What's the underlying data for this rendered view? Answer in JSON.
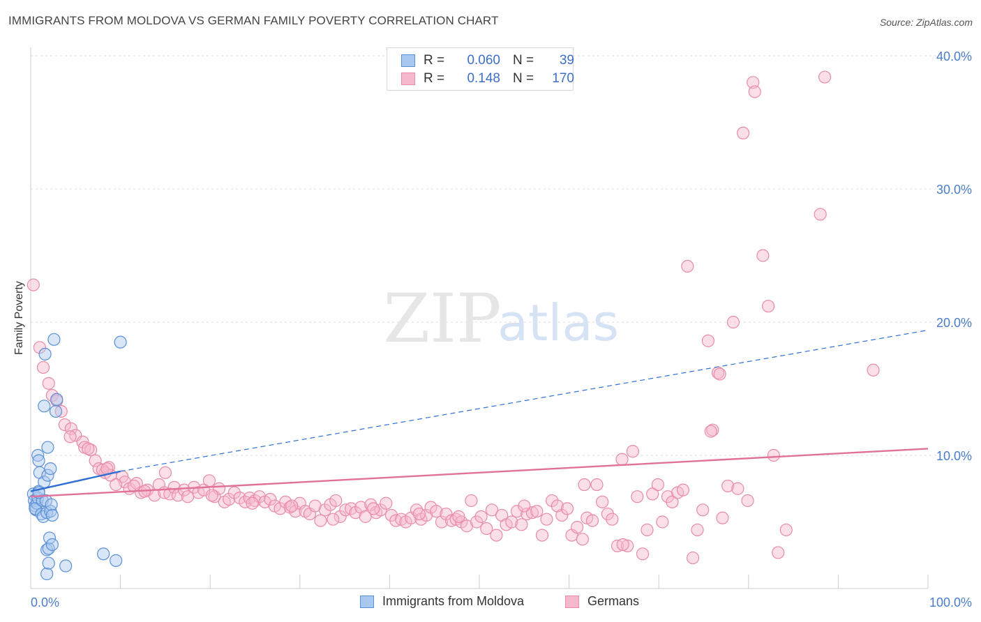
{
  "title": "IMMIGRANTS FROM MOLDOVA VS GERMAN FAMILY POVERTY CORRELATION CHART",
  "source": "Source: ZipAtlas.com",
  "watermark": {
    "zip": "ZIP",
    "atlas": "atlas"
  },
  "colors": {
    "blue_fill": "#a9c8f0",
    "blue_stroke": "#5b8fd6",
    "blue_line": "#2e6fd2",
    "pink_fill": "#f6b8cc",
    "pink_stroke": "#e88aa8",
    "pink_line": "#e2719a",
    "grid": "#dddddd",
    "tick_text": "#4a7dc9"
  },
  "legend_top": {
    "rows": [
      {
        "r_label": "R =",
        "r_value": "0.060",
        "n_label": "N =",
        "n_value": "39"
      },
      {
        "r_label": "R =",
        "r_value": "0.148",
        "n_label": "N =",
        "n_value": "170"
      }
    ]
  },
  "legend_bottom": [
    "Immigrants from Moldova",
    "Germans"
  ],
  "chart_data": {
    "type": "scatter",
    "title": "IMMIGRANTS FROM MOLDOVA VS GERMAN FAMILY POVERTY CORRELATION CHART",
    "xlabel": "",
    "ylabel": "Family Poverty",
    "xlim": [
      0,
      100
    ],
    "ylim": [
      0,
      40
    ],
    "x_tick_labels": [
      "0.0%",
      "100.0%"
    ],
    "y_ticks": [
      10,
      20,
      30,
      40
    ],
    "y_tick_labels": [
      "10.0%",
      "20.0%",
      "30.0%",
      "40.0%"
    ],
    "grid": true,
    "legend_placement": "top-center",
    "series": [
      {
        "name": "Immigrants from Moldova",
        "R": 0.06,
        "N": 39,
        "trend": {
          "solid": [
            [
              0,
              7.3
            ],
            [
              10,
              8.8
            ]
          ],
          "dashed": [
            [
              10,
              8.8
            ],
            [
              100,
              19.4
            ]
          ]
        },
        "points": [
          [
            0.3,
            7.1
          ],
          [
            0.4,
            6.6
          ],
          [
            0.5,
            6.2
          ],
          [
            0.6,
            5.9
          ],
          [
            0.7,
            6.4
          ],
          [
            0.8,
            6.8
          ],
          [
            0.9,
            7.3
          ],
          [
            0.5,
            6.0
          ],
          [
            0.8,
            10.0
          ],
          [
            0.9,
            9.6
          ],
          [
            1.0,
            8.7
          ],
          [
            1.2,
            5.6
          ],
          [
            1.3,
            6.6
          ],
          [
            1.4,
            5.4
          ],
          [
            1.5,
            13.7
          ],
          [
            1.5,
            8.0
          ],
          [
            1.6,
            17.6
          ],
          [
            1.7,
            6.6
          ],
          [
            1.8,
            5.7
          ],
          [
            1.8,
            2.9
          ],
          [
            1.8,
            1.1
          ],
          [
            1.9,
            10.6
          ],
          [
            1.9,
            8.5
          ],
          [
            2.0,
            3.0
          ],
          [
            2.0,
            1.9
          ],
          [
            2.1,
            3.8
          ],
          [
            2.2,
            5.8
          ],
          [
            2.2,
            9.0
          ],
          [
            2.3,
            6.3
          ],
          [
            2.4,
            3.3
          ],
          [
            2.4,
            5.5
          ],
          [
            2.6,
            18.7
          ],
          [
            2.8,
            13.3
          ],
          [
            2.9,
            14.2
          ],
          [
            3.9,
            1.7
          ],
          [
            8.1,
            2.6
          ],
          [
            9.5,
            2.1
          ],
          [
            10.0,
            18.5
          ],
          [
            0.9,
            7.2
          ]
        ]
      },
      {
        "name": "Germans",
        "R": 0.148,
        "N": 170,
        "trend": {
          "solid": [
            [
              0,
              6.9
            ],
            [
              100,
              10.5
            ]
          ]
        },
        "points": [
          [
            0.3,
            22.8
          ],
          [
            1.0,
            18.1
          ],
          [
            1.4,
            16.6
          ],
          [
            2.0,
            15.4
          ],
          [
            2.4,
            14.5
          ],
          [
            2.9,
            14.1
          ],
          [
            3.4,
            13.3
          ],
          [
            3.8,
            12.3
          ],
          [
            4.5,
            12.0
          ],
          [
            5.0,
            11.5
          ],
          [
            4.4,
            11.4
          ],
          [
            5.8,
            11.0
          ],
          [
            6.0,
            10.6
          ],
          [
            6.7,
            10.4
          ],
          [
            6.4,
            10.5
          ],
          [
            7.2,
            9.6
          ],
          [
            7.6,
            9.0
          ],
          [
            8.7,
            9.1
          ],
          [
            8.3,
            8.7
          ],
          [
            8.9,
            8.5
          ],
          [
            10.2,
            8.4
          ],
          [
            10.5,
            8.0
          ],
          [
            11.0,
            7.5
          ],
          [
            11.8,
            7.9
          ],
          [
            12.3,
            7.2
          ],
          [
            13.0,
            7.4
          ],
          [
            13.8,
            7.0
          ],
          [
            14.3,
            7.8
          ],
          [
            14.9,
            7.2
          ],
          [
            15.5,
            7.1
          ],
          [
            16.0,
            7.6
          ],
          [
            16.4,
            7.0
          ],
          [
            17.1,
            7.4
          ],
          [
            17.5,
            6.9
          ],
          [
            18.2,
            7.6
          ],
          [
            18.7,
            7.2
          ],
          [
            19.3,
            7.4
          ],
          [
            19.9,
            8.1
          ],
          [
            20.5,
            6.9
          ],
          [
            21.0,
            7.5
          ],
          [
            21.6,
            6.5
          ],
          [
            22.1,
            6.7
          ],
          [
            22.7,
            7.2
          ],
          [
            23.3,
            6.8
          ],
          [
            23.9,
            6.5
          ],
          [
            24.4,
            6.8
          ],
          [
            25.0,
            6.6
          ],
          [
            25.5,
            6.9
          ],
          [
            26.1,
            6.5
          ],
          [
            26.7,
            6.7
          ],
          [
            27.2,
            6.2
          ],
          [
            27.8,
            6.0
          ],
          [
            28.4,
            6.5
          ],
          [
            28.9,
            6.1
          ],
          [
            29.5,
            5.8
          ],
          [
            30.0,
            6.4
          ],
          [
            30.6,
            5.8
          ],
          [
            31.1,
            5.6
          ],
          [
            31.7,
            6.2
          ],
          [
            32.3,
            5.1
          ],
          [
            32.8,
            5.9
          ],
          [
            33.4,
            6.3
          ],
          [
            34.0,
            6.6
          ],
          [
            34.5,
            5.4
          ],
          [
            35.1,
            5.9
          ],
          [
            35.7,
            6.0
          ],
          [
            36.2,
            5.7
          ],
          [
            36.8,
            6.1
          ],
          [
            37.3,
            5.4
          ],
          [
            37.9,
            6.3
          ],
          [
            38.5,
            5.7
          ],
          [
            39.0,
            5.9
          ],
          [
            39.6,
            6.4
          ],
          [
            40.2,
            5.5
          ],
          [
            40.7,
            5.1
          ],
          [
            41.3,
            5.2
          ],
          [
            41.8,
            5.0
          ],
          [
            42.4,
            5.3
          ],
          [
            43.0,
            5.9
          ],
          [
            43.5,
            5.2
          ],
          [
            44.1,
            5.5
          ],
          [
            44.6,
            6.1
          ],
          [
            45.2,
            5.8
          ],
          [
            45.8,
            5.0
          ],
          [
            46.3,
            5.6
          ],
          [
            46.9,
            5.1
          ],
          [
            47.4,
            5.2
          ],
          [
            48.0,
            5.0
          ],
          [
            48.6,
            4.7
          ],
          [
            49.1,
            6.6
          ],
          [
            49.7,
            5.0
          ],
          [
            50.2,
            5.4
          ],
          [
            50.8,
            4.5
          ],
          [
            51.4,
            5.9
          ],
          [
            51.9,
            4.0
          ],
          [
            52.5,
            5.5
          ],
          [
            53.0,
            4.8
          ],
          [
            53.6,
            5.0
          ],
          [
            54.2,
            5.8
          ],
          [
            54.7,
            4.8
          ],
          [
            55.3,
            5.6
          ],
          [
            55.9,
            5.7
          ],
          [
            56.4,
            5.8
          ],
          [
            57.0,
            4.0
          ],
          [
            57.5,
            5.2
          ],
          [
            58.1,
            6.6
          ],
          [
            58.7,
            6.2
          ],
          [
            59.2,
            5.5
          ],
          [
            59.8,
            6.0
          ],
          [
            60.3,
            4.0
          ],
          [
            60.9,
            4.6
          ],
          [
            61.5,
            3.7
          ],
          [
            62.0,
            5.3
          ],
          [
            62.6,
            5.1
          ],
          [
            63.1,
            7.8
          ],
          [
            63.7,
            6.5
          ],
          [
            64.3,
            5.6
          ],
          [
            64.8,
            5.2
          ],
          [
            65.4,
            3.2
          ],
          [
            65.9,
            9.7
          ],
          [
            66.5,
            3.2
          ],
          [
            67.1,
            10.3
          ],
          [
            67.6,
            6.9
          ],
          [
            68.2,
            2.6
          ],
          [
            68.7,
            4.4
          ],
          [
            69.3,
            7.1
          ],
          [
            69.9,
            7.8
          ],
          [
            70.4,
            5.0
          ],
          [
            71.0,
            6.9
          ],
          [
            71.5,
            6.5
          ],
          [
            72.1,
            7.2
          ],
          [
            72.7,
            7.4
          ],
          [
            73.2,
            24.2
          ],
          [
            73.8,
            2.3
          ],
          [
            74.3,
            4.4
          ],
          [
            74.9,
            5.9
          ],
          [
            75.5,
            18.6
          ],
          [
            76.0,
            11.9
          ],
          [
            76.6,
            16.2
          ],
          [
            77.1,
            5.3
          ],
          [
            77.7,
            7.7
          ],
          [
            78.3,
            20.0
          ],
          [
            78.8,
            7.5
          ],
          [
            79.4,
            34.2
          ],
          [
            79.9,
            6.6
          ],
          [
            80.5,
            38.0
          ],
          [
            80.7,
            37.3
          ],
          [
            81.6,
            25.0
          ],
          [
            82.2,
            21.2
          ],
          [
            82.8,
            10.0
          ],
          [
            83.3,
            2.7
          ],
          [
            84.2,
            4.4
          ],
          [
            88.0,
            28.1
          ],
          [
            88.5,
            38.4
          ],
          [
            93.9,
            16.4
          ],
          [
            76.8,
            16.1
          ],
          [
            75.8,
            11.8
          ],
          [
            66.0,
            3.3
          ],
          [
            61.7,
            7.8
          ],
          [
            55.0,
            6.2
          ],
          [
            47.7,
            5.4
          ],
          [
            43.3,
            5.6
          ],
          [
            38.2,
            6.0
          ],
          [
            33.7,
            5.2
          ],
          [
            29.1,
            6.2
          ],
          [
            24.7,
            6.4
          ],
          [
            20.2,
            7.0
          ],
          [
            15.0,
            8.7
          ],
          [
            12.7,
            7.3
          ],
          [
            11.5,
            7.7
          ],
          [
            9.5,
            7.8
          ],
          [
            8.0,
            8.9
          ],
          [
            8.5,
            9.0
          ]
        ]
      }
    ]
  }
}
